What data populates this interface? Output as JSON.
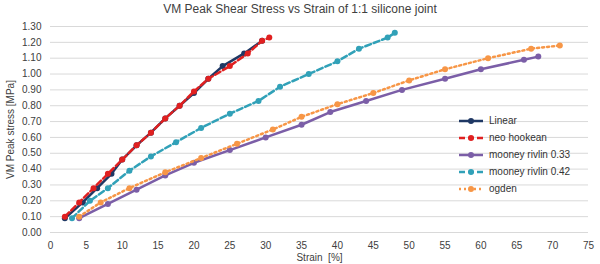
{
  "chart_data": {
    "type": "line",
    "title": "VM Peak Shear Stress vs Strain of 1:1 silicone joint",
    "x_label": "Strain  [%]",
    "y_label": "VM Peak stress [MPa]",
    "xlim": [
      0,
      75
    ],
    "xticks": [
      0,
      5,
      10,
      15,
      20,
      25,
      30,
      35,
      40,
      45,
      50,
      55,
      60,
      65,
      70,
      75
    ],
    "ylim": [
      0,
      1.3
    ],
    "yticks": [
      {
        "value": 0,
        "label": "0.00"
      },
      {
        "value": 0.1,
        "label": "0.10"
      },
      {
        "value": 0.2,
        "label": "0.20"
      },
      {
        "value": 0.3,
        "label": "0.30"
      },
      {
        "value": 0.4,
        "label": "0.40"
      },
      {
        "value": 0.5,
        "label": "0.50"
      },
      {
        "value": 0.6,
        "label": "0.60"
      },
      {
        "value": 0.7,
        "label": "0.70"
      },
      {
        "value": 0.8,
        "label": "0.80"
      },
      {
        "value": 0.9,
        "label": "0.90"
      },
      {
        "value": 1.0,
        "label": "1.00"
      },
      {
        "value": 1.1,
        "label": "1.10"
      },
      {
        "value": 1.2,
        "label": "1.20"
      },
      {
        "value": 1.3,
        "label": "1.30"
      }
    ],
    "grid": true,
    "legend": "right",
    "series": [
      {
        "name": "Linear",
        "color": "#1f3864",
        "line_style": "solid",
        "marker": "circle",
        "x": [
          2,
          4.5,
          6.5,
          8.5,
          10,
          12,
          14,
          16,
          18,
          20,
          22,
          24,
          27,
          29.5
        ],
        "values": [
          0.09,
          0.19,
          0.28,
          0.37,
          0.46,
          0.55,
          0.63,
          0.72,
          0.8,
          0.88,
          0.97,
          1.05,
          1.13,
          1.21
        ]
      },
      {
        "name": "neo hookean",
        "color": "#e02020",
        "line_style": "dashed",
        "marker": "circle",
        "x": [
          2,
          4,
          6,
          8,
          10,
          12,
          14,
          16,
          18,
          20,
          22,
          25,
          27.5,
          29.5,
          30.5
        ],
        "values": [
          0.1,
          0.19,
          0.28,
          0.37,
          0.46,
          0.55,
          0.63,
          0.72,
          0.8,
          0.89,
          0.97,
          1.05,
          1.13,
          1.21,
          1.23
        ]
      },
      {
        "name": "mooney rivlin 0.33",
        "color": "#7b5ea7",
        "line_style": "solid",
        "marker": "circle",
        "x": [
          4,
          8,
          12,
          16,
          20,
          25,
          30,
          35,
          39,
          44,
          49,
          55,
          60,
          66,
          68
        ],
        "values": [
          0.09,
          0.18,
          0.27,
          0.36,
          0.44,
          0.52,
          0.6,
          0.68,
          0.76,
          0.83,
          0.9,
          0.97,
          1.03,
          1.09,
          1.11
        ]
      },
      {
        "name": "mooney rivlin 0.42",
        "color": "#31a1b8",
        "line_style": "dashed",
        "marker": "circle",
        "x": [
          3,
          5.5,
          8,
          11,
          14,
          17.5,
          21,
          25,
          29,
          32,
          36,
          40,
          43,
          47,
          48
        ],
        "values": [
          0.09,
          0.2,
          0.28,
          0.39,
          0.48,
          0.57,
          0.66,
          0.75,
          0.83,
          0.92,
          1.0,
          1.08,
          1.16,
          1.23,
          1.26
        ]
      },
      {
        "name": "ogden",
        "color": "#f79646",
        "line_style": "dotted",
        "marker": "circle",
        "x": [
          4,
          7,
          11,
          16,
          21,
          26,
          31,
          35,
          40,
          45,
          50,
          55,
          61,
          67,
          71
        ],
        "values": [
          0.1,
          0.19,
          0.28,
          0.38,
          0.47,
          0.56,
          0.65,
          0.73,
          0.81,
          0.88,
          0.96,
          1.03,
          1.1,
          1.16,
          1.18
        ]
      }
    ]
  }
}
